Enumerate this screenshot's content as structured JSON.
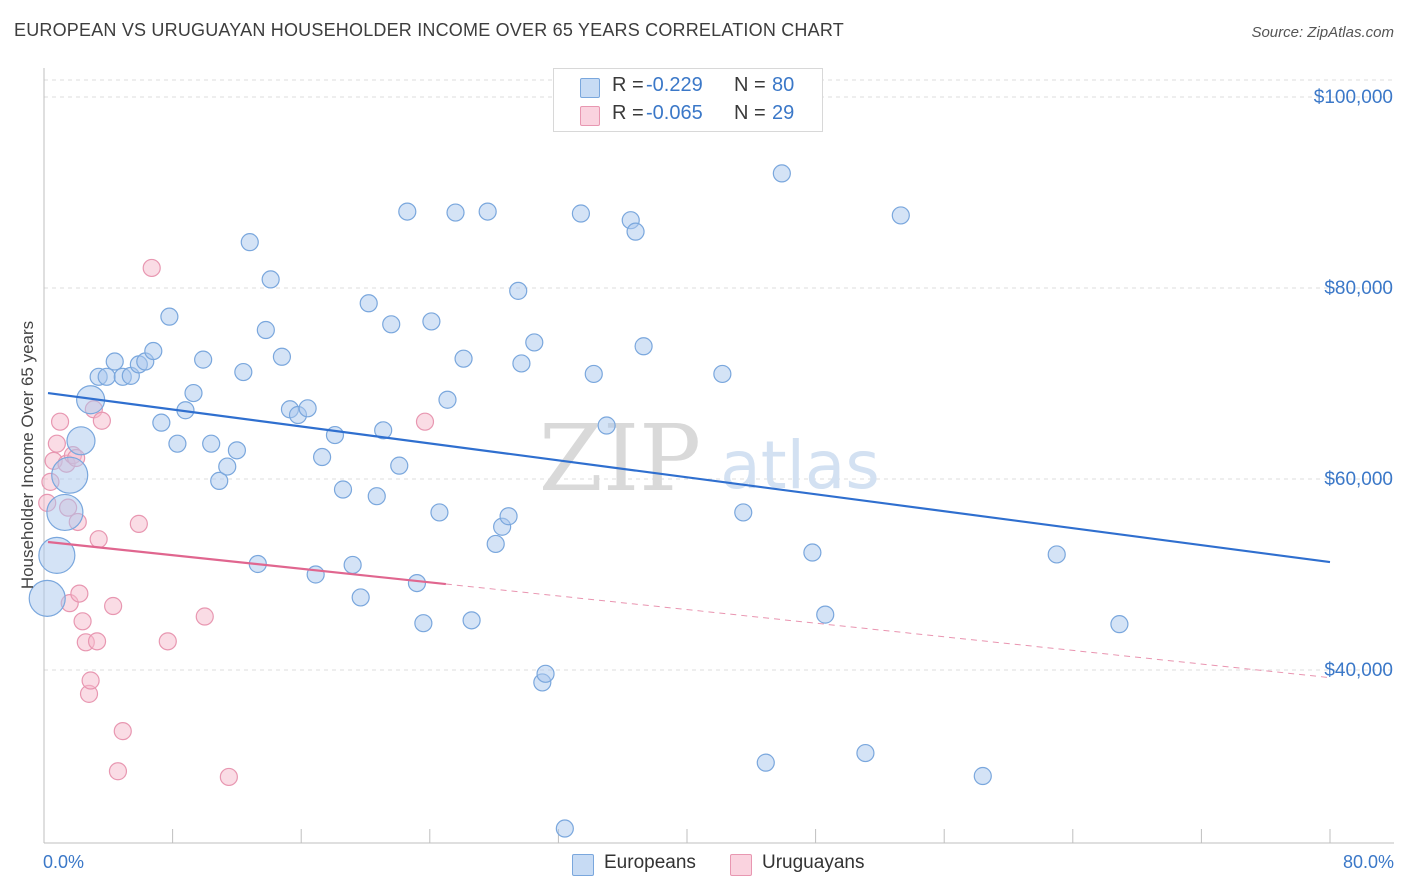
{
  "header": {
    "title": "EUROPEAN VS URUGUAYAN HOUSEHOLDER INCOME OVER 65 YEARS CORRELATION CHART",
    "source": "Source: ZipAtlas.com"
  },
  "watermark": {
    "zip": "ZIP",
    "atlas": "atlas"
  },
  "legend_top": {
    "rows": [
      {
        "r_label": "R =",
        "r_value": "-0.229",
        "n_label": "N =",
        "n_value": "80",
        "color": "#a9c7ee"
      },
      {
        "r_label": "R =",
        "r_value": "-0.065",
        "n_label": "N =",
        "n_value": "29",
        "color": "#f5b9cc"
      }
    ]
  },
  "legend_bottom": {
    "items": [
      {
        "label": "Europeans",
        "color": "#a9c7ee"
      },
      {
        "label": "Uruguayans",
        "color": "#f5b9cc"
      }
    ]
  },
  "colors": {
    "blue_fill": "#a9c7ee",
    "blue_stroke": "#7aa7dd",
    "blue_line": "#2f6fcf",
    "pink_fill": "#f5b9cc",
    "pink_stroke": "#e897b1",
    "pink_line": "#e0668f",
    "tick_label": "#3b78c8",
    "grid": "#dcdcdc"
  },
  "chart_data": {
    "type": "scatter",
    "title": "EUROPEAN VS URUGUAYAN HOUSEHOLDER INCOME OVER 65 YEARS CORRELATION CHART",
    "xlabel": "",
    "ylabel": "Householder Income Over 65 years",
    "xlim": [
      0,
      80
    ],
    "ylim": [
      22000,
      102000
    ],
    "x_tick_labels": [
      "0.0%",
      "80.0%"
    ],
    "y_ticks": [
      40000,
      60000,
      80000,
      100000
    ],
    "y_tick_labels": [
      "$40,000",
      "$60,000",
      "$80,000",
      "$100,000"
    ],
    "grid": true,
    "legend_placement": "top-center",
    "series": [
      {
        "name": "Europeans",
        "r": -0.229,
        "n": 80,
        "trend": {
          "x": [
            0,
            80
          ],
          "y": [
            69000,
            51300
          ]
        },
        "points": [
          {
            "x": 0.2,
            "y": 47500,
            "s": "xl"
          },
          {
            "x": 0.8,
            "y": 52000,
            "s": "xl"
          },
          {
            "x": 1.3,
            "y": 56500,
            "s": "xl"
          },
          {
            "x": 1.6,
            "y": 60400,
            "s": "xl"
          },
          {
            "x": 2.3,
            "y": 64000,
            "s": "l"
          },
          {
            "x": 2.9,
            "y": 68300,
            "s": "l"
          },
          {
            "x": 3.4,
            "y": 70700,
            "s": "m"
          },
          {
            "x": 3.9,
            "y": 70700,
            "s": "m"
          },
          {
            "x": 4.4,
            "y": 72300,
            "s": "m"
          },
          {
            "x": 4.9,
            "y": 70700,
            "s": "m"
          },
          {
            "x": 5.4,
            "y": 70800,
            "s": "m"
          },
          {
            "x": 5.9,
            "y": 72000,
            "s": "m"
          },
          {
            "x": 6.3,
            "y": 72300,
            "s": "m"
          },
          {
            "x": 6.8,
            "y": 73400,
            "s": "m"
          },
          {
            "x": 7.3,
            "y": 65900,
            "s": "m"
          },
          {
            "x": 7.8,
            "y": 77000,
            "s": "m"
          },
          {
            "x": 8.3,
            "y": 63700,
            "s": "m"
          },
          {
            "x": 8.8,
            "y": 67200,
            "s": "m"
          },
          {
            "x": 9.3,
            "y": 69000,
            "s": "m"
          },
          {
            "x": 9.9,
            "y": 72500,
            "s": "m"
          },
          {
            "x": 10.4,
            "y": 63700,
            "s": "m"
          },
          {
            "x": 10.9,
            "y": 59800,
            "s": "m"
          },
          {
            "x": 11.4,
            "y": 61300,
            "s": "m"
          },
          {
            "x": 12.0,
            "y": 63000,
            "s": "m"
          },
          {
            "x": 12.4,
            "y": 71200,
            "s": "m"
          },
          {
            "x": 12.8,
            "y": 84800,
            "s": "m"
          },
          {
            "x": 13.3,
            "y": 51100,
            "s": "m"
          },
          {
            "x": 13.8,
            "y": 75600,
            "s": "m"
          },
          {
            "x": 14.1,
            "y": 80900,
            "s": "m"
          },
          {
            "x": 14.8,
            "y": 72800,
            "s": "m"
          },
          {
            "x": 15.3,
            "y": 67300,
            "s": "m"
          },
          {
            "x": 15.8,
            "y": 66700,
            "s": "m"
          },
          {
            "x": 16.4,
            "y": 67400,
            "s": "m"
          },
          {
            "x": 16.9,
            "y": 50000,
            "s": "m"
          },
          {
            "x": 17.3,
            "y": 62300,
            "s": "m"
          },
          {
            "x": 18.1,
            "y": 64600,
            "s": "m"
          },
          {
            "x": 18.6,
            "y": 58900,
            "s": "m"
          },
          {
            "x": 19.2,
            "y": 51000,
            "s": "m"
          },
          {
            "x": 19.7,
            "y": 47600,
            "s": "m"
          },
          {
            "x": 20.2,
            "y": 78400,
            "s": "m"
          },
          {
            "x": 20.7,
            "y": 58200,
            "s": "m"
          },
          {
            "x": 21.1,
            "y": 65100,
            "s": "m"
          },
          {
            "x": 21.6,
            "y": 76200,
            "s": "m"
          },
          {
            "x": 22.1,
            "y": 61400,
            "s": "m"
          },
          {
            "x": 22.6,
            "y": 88000,
            "s": "m"
          },
          {
            "x": 23.2,
            "y": 49100,
            "s": "m"
          },
          {
            "x": 23.6,
            "y": 44900,
            "s": "m"
          },
          {
            "x": 24.1,
            "y": 76500,
            "s": "m"
          },
          {
            "x": 24.6,
            "y": 56500,
            "s": "m"
          },
          {
            "x": 25.1,
            "y": 68300,
            "s": "m"
          },
          {
            "x": 25.6,
            "y": 87900,
            "s": "m"
          },
          {
            "x": 26.1,
            "y": 72600,
            "s": "m"
          },
          {
            "x": 26.6,
            "y": 45200,
            "s": "m"
          },
          {
            "x": 27.6,
            "y": 88000,
            "s": "m"
          },
          {
            "x": 28.1,
            "y": 53200,
            "s": "m"
          },
          {
            "x": 28.5,
            "y": 55000,
            "s": "m"
          },
          {
            "x": 28.9,
            "y": 56100,
            "s": "m"
          },
          {
            "x": 29.5,
            "y": 79700,
            "s": "m"
          },
          {
            "x": 29.7,
            "y": 72100,
            "s": "m"
          },
          {
            "x": 30.5,
            "y": 74300,
            "s": "m"
          },
          {
            "x": 31.0,
            "y": 38700,
            "s": "m"
          },
          {
            "x": 31.2,
            "y": 39600,
            "s": "m"
          },
          {
            "x": 32.4,
            "y": 23400,
            "s": "m"
          },
          {
            "x": 33.4,
            "y": 87800,
            "s": "m"
          },
          {
            "x": 34.2,
            "y": 71000,
            "s": "m"
          },
          {
            "x": 35.0,
            "y": 65600,
            "s": "m"
          },
          {
            "x": 36.5,
            "y": 87100,
            "s": "m"
          },
          {
            "x": 36.8,
            "y": 85900,
            "s": "m"
          },
          {
            "x": 37.3,
            "y": 73900,
            "s": "m"
          },
          {
            "x": 42.2,
            "y": 71000,
            "s": "m"
          },
          {
            "x": 43.5,
            "y": 56500,
            "s": "m"
          },
          {
            "x": 44.9,
            "y": 30300,
            "s": "m"
          },
          {
            "x": 45.9,
            "y": 92000,
            "s": "m"
          },
          {
            "x": 47.8,
            "y": 52300,
            "s": "m"
          },
          {
            "x": 48.6,
            "y": 45800,
            "s": "m"
          },
          {
            "x": 51.1,
            "y": 31300,
            "s": "m"
          },
          {
            "x": 53.3,
            "y": 87600,
            "s": "m"
          },
          {
            "x": 58.4,
            "y": 28900,
            "s": "m"
          },
          {
            "x": 63.0,
            "y": 52100,
            "s": "m"
          },
          {
            "x": 66.9,
            "y": 44800,
            "s": "m"
          }
        ]
      },
      {
        "name": "Uruguayans",
        "r": -0.065,
        "n": 29,
        "trend": {
          "x": [
            0,
            25
          ],
          "y": [
            53400,
            49000
          ]
        },
        "trend_dashed": {
          "x": [
            25,
            80
          ],
          "y": [
            49000,
            39200
          ]
        },
        "points": [
          {
            "x": 0.2,
            "y": 57500,
            "s": "m"
          },
          {
            "x": 0.4,
            "y": 59700,
            "s": "m"
          },
          {
            "x": 0.6,
            "y": 61900,
            "s": "m"
          },
          {
            "x": 0.8,
            "y": 63700,
            "s": "m"
          },
          {
            "x": 1.0,
            "y": 66000,
            "s": "m"
          },
          {
            "x": 1.4,
            "y": 61600,
            "s": "m"
          },
          {
            "x": 1.5,
            "y": 57000,
            "s": "m"
          },
          {
            "x": 1.6,
            "y": 47000,
            "s": "m"
          },
          {
            "x": 1.8,
            "y": 62500,
            "s": "m"
          },
          {
            "x": 2.0,
            "y": 62200,
            "s": "m"
          },
          {
            "x": 2.1,
            "y": 55500,
            "s": "m"
          },
          {
            "x": 2.2,
            "y": 48000,
            "s": "m"
          },
          {
            "x": 2.4,
            "y": 45100,
            "s": "m"
          },
          {
            "x": 2.6,
            "y": 42900,
            "s": "m"
          },
          {
            "x": 2.8,
            "y": 37500,
            "s": "m"
          },
          {
            "x": 2.9,
            "y": 38900,
            "s": "m"
          },
          {
            "x": 3.1,
            "y": 67300,
            "s": "m"
          },
          {
            "x": 3.3,
            "y": 43000,
            "s": "m"
          },
          {
            "x": 3.4,
            "y": 53700,
            "s": "m"
          },
          {
            "x": 3.6,
            "y": 66100,
            "s": "m"
          },
          {
            "x": 4.3,
            "y": 46700,
            "s": "m"
          },
          {
            "x": 4.6,
            "y": 29400,
            "s": "m"
          },
          {
            "x": 4.9,
            "y": 33600,
            "s": "m"
          },
          {
            "x": 5.9,
            "y": 55300,
            "s": "m"
          },
          {
            "x": 6.7,
            "y": 82100,
            "s": "m"
          },
          {
            "x": 7.7,
            "y": 43000,
            "s": "m"
          },
          {
            "x": 10.0,
            "y": 45600,
            "s": "m"
          },
          {
            "x": 11.5,
            "y": 28800,
            "s": "m"
          },
          {
            "x": 23.7,
            "y": 66000,
            "s": "m"
          }
        ]
      }
    ]
  }
}
